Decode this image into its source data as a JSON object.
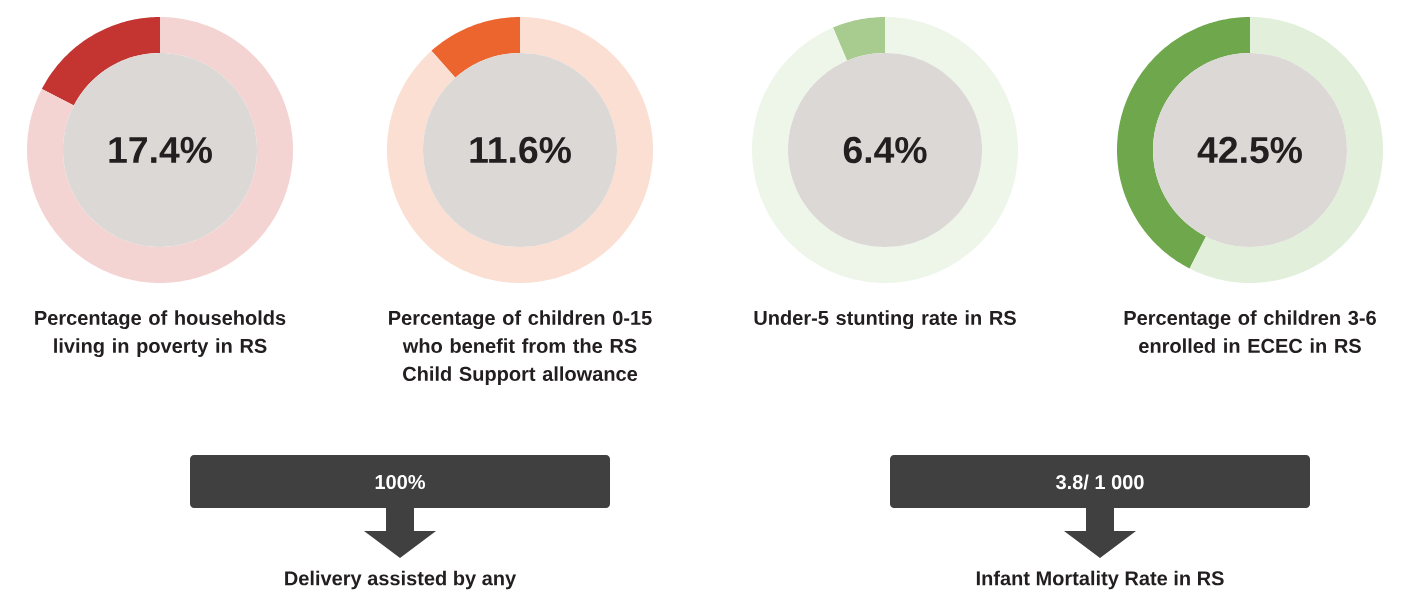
{
  "chart_data": [
    {
      "type": "donut",
      "title": "Percentage of households living in poverty in RS",
      "categories": [
        null,
        null
      ],
      "values": [
        17.4,
        82.6
      ],
      "colors": [
        "#c43532",
        "#f4d4d2"
      ],
      "annotations": [
        "17.4%"
      ]
    },
    {
      "type": "donut",
      "title": "Percentage of children 0-15 who benefit from the RS Child Support allowance",
      "categories": [
        null,
        null
      ],
      "values": [
        11.6,
        88.4
      ],
      "colors": [
        "#ec652e",
        "#fbdfd3"
      ],
      "annotations": [
        "11.6%"
      ]
    },
    {
      "type": "donut",
      "title": "Under-5 stunting rate in RS",
      "categories": [
        null,
        null
      ],
      "values": [
        6.4,
        93.6
      ],
      "colors": [
        "#a8cc8f",
        "#eef6ea"
      ],
      "annotations": [
        "6.4%"
      ]
    },
    {
      "type": "donut",
      "title": "Percentage of children 3-6 enrolled in ECEC in RS",
      "categories": [
        null,
        null
      ],
      "values": [
        42.5,
        57.5
      ],
      "colors": [
        "#6fa84c",
        "#e2efda"
      ],
      "annotations": [
        "42.5%"
      ]
    },
    {
      "type": "other",
      "title": "Delivery assisted by any",
      "annotations": [
        "100%"
      ]
    },
    {
      "type": "other",
      "title": "Infant Mortality Rate in RS",
      "annotations": [
        "3.8/ 1 000"
      ]
    }
  ]
}
